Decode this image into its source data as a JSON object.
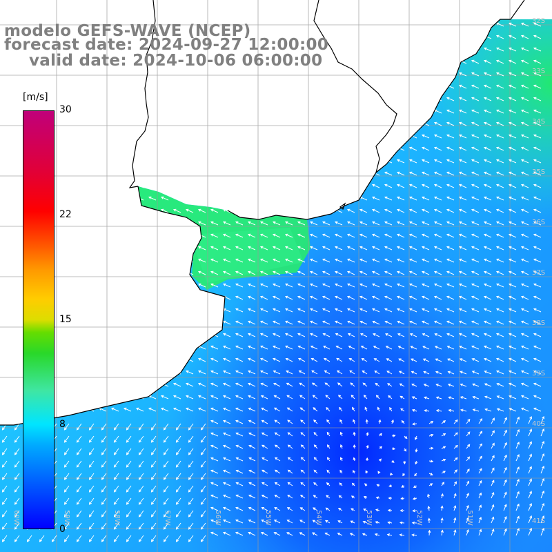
{
  "title": {
    "line1": "modelo GEFS-WAVE (NCEP)",
    "line2": "forecast date: 2024-09-27 12:00:00",
    "line3": "valid date: 2024-10-06 06:00:00"
  },
  "colorbar": {
    "units": "[m/s]",
    "ticks": [
      {
        "label": "30",
        "value": 30
      },
      {
        "label": "22",
        "value": 22
      },
      {
        "label": "15",
        "value": 15
      },
      {
        "label": "8",
        "value": 8
      },
      {
        "label": "0",
        "value": 0
      }
    ]
  },
  "grid_labels": {
    "latitude": [
      "32S",
      "33S",
      "34S",
      "35S",
      "36S",
      "37S",
      "38S",
      "39S",
      "40S",
      "41S"
    ],
    "longitude": [
      "60W",
      "59W",
      "58W",
      "57W",
      "56W",
      "55W",
      "54W",
      "53W",
      "52W",
      "51W"
    ]
  },
  "colors": {
    "title": "#808080",
    "land": "#ffffff",
    "coast": "#000000",
    "grid": "#a0a0a0",
    "arrows": "#ffffff"
  },
  "field": {
    "variable": "wind speed",
    "units": "m/s",
    "range": [
      0,
      30
    ],
    "arrows": "white wind-direction arrows over ocean"
  }
}
